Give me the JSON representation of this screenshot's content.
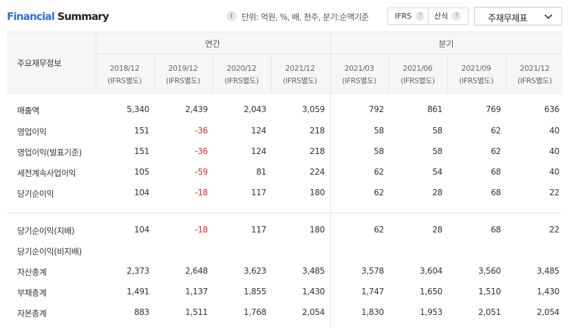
{
  "header": {
    "title_part1": "Financial",
    "title_part2": "Summary",
    "info_icon": "i",
    "unit_text": "단위: 억원, %, 배, 천주, 분기:순액기준",
    "ifrs_label": "IFRS",
    "calc_label": "산식",
    "help_icon": "?",
    "select_value": "주재무제표",
    "select_icon": "chevron-down-icon"
  },
  "table": {
    "corner_label": "주요재무정보",
    "group_annual": "연간",
    "group_quarter": "분기",
    "periods": [
      {
        "date": "2018/12",
        "basis": "(IFRS별도)"
      },
      {
        "date": "2019/12",
        "basis": "(IFRS별도)"
      },
      {
        "date": "2020/12",
        "basis": "(IFRS별도)"
      },
      {
        "date": "2021/12",
        "basis": "(IFRS별도)"
      },
      {
        "date": "2021/03",
        "basis": "(IFRS별도)"
      },
      {
        "date": "2021/06",
        "basis": "(IFRS별도)"
      },
      {
        "date": "2021/09",
        "basis": "(IFRS별도)"
      },
      {
        "date": "2021/12",
        "basis": "(IFRS별도)"
      }
    ],
    "rows": [
      {
        "label": "매출액",
        "values": [
          "5,340",
          "2,439",
          "2,043",
          "3,059",
          "792",
          "861",
          "769",
          "636"
        ]
      },
      {
        "label": "영업이익",
        "values": [
          "151",
          "-36",
          "124",
          "218",
          "58",
          "58",
          "62",
          "40"
        ]
      },
      {
        "label": "영업이익(발표기준)",
        "values": [
          "151",
          "-36",
          "124",
          "218",
          "58",
          "58",
          "62",
          "40"
        ]
      },
      {
        "label": "세전계속사업이익",
        "values": [
          "105",
          "-59",
          "81",
          "224",
          "62",
          "54",
          "68",
          "40"
        ]
      },
      {
        "label": "당기순이익",
        "values": [
          "104",
          "-18",
          "117",
          "180",
          "62",
          "28",
          "68",
          "22"
        ]
      },
      {
        "label": "당기순이익(지배)",
        "values": [
          "104",
          "-18",
          "117",
          "180",
          "62",
          "28",
          "68",
          "22"
        ]
      },
      {
        "label": "당기순이익(비지배)",
        "values": [
          "",
          "",
          "",
          "",
          "",
          "",
          "",
          ""
        ]
      },
      {
        "label": "자산총계",
        "values": [
          "2,373",
          "2,648",
          "3,623",
          "3,485",
          "3,578",
          "3,604",
          "3,560",
          "3,485"
        ]
      },
      {
        "label": "부채총계",
        "values": [
          "1,491",
          "1,137",
          "1,855",
          "1,430",
          "1,747",
          "1,650",
          "1,510",
          "1,430"
        ]
      },
      {
        "label": "자본총계",
        "values": [
          "883",
          "1,511",
          "1,768",
          "2,054",
          "1,830",
          "1,953",
          "2,051",
          "2,054"
        ]
      }
    ],
    "colors": {
      "negative": "#e02525",
      "accent": "#2f6fd6",
      "header_bg": "#f5f6f8"
    }
  }
}
